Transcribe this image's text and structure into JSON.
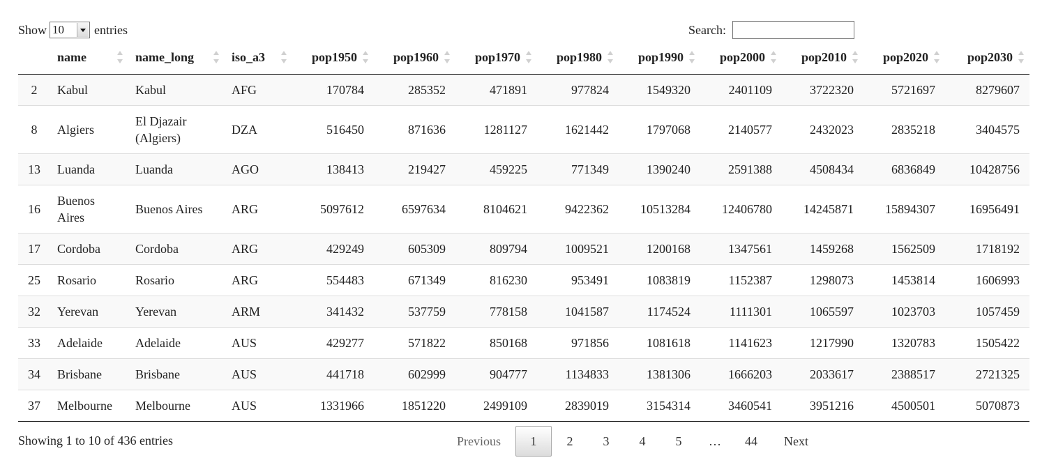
{
  "length": {
    "prefix": "Show",
    "value": "10",
    "suffix": "entries"
  },
  "search": {
    "label": "Search:",
    "value": ""
  },
  "table": {
    "columns": [
      "",
      "name",
      "name_long",
      "iso_a3",
      "pop1950",
      "pop1960",
      "pop1970",
      "pop1980",
      "pop1990",
      "pop2000",
      "pop2010",
      "pop2020",
      "pop2030"
    ],
    "rows": [
      [
        "2",
        "Kabul",
        "Kabul",
        "AFG",
        "170784",
        "285352",
        "471891",
        "977824",
        "1549320",
        "2401109",
        "3722320",
        "5721697",
        "8279607"
      ],
      [
        "8",
        "Algiers",
        "El Djazair (Algiers)",
        "DZA",
        "516450",
        "871636",
        "1281127",
        "1621442",
        "1797068",
        "2140577",
        "2432023",
        "2835218",
        "3404575"
      ],
      [
        "13",
        "Luanda",
        "Luanda",
        "AGO",
        "138413",
        "219427",
        "459225",
        "771349",
        "1390240",
        "2591388",
        "4508434",
        "6836849",
        "10428756"
      ],
      [
        "16",
        "Buenos Aires",
        "Buenos Aires",
        "ARG",
        "5097612",
        "6597634",
        "8104621",
        "9422362",
        "10513284",
        "12406780",
        "14245871",
        "15894307",
        "16956491"
      ],
      [
        "17",
        "Cordoba",
        "Cordoba",
        "ARG",
        "429249",
        "605309",
        "809794",
        "1009521",
        "1200168",
        "1347561",
        "1459268",
        "1562509",
        "1718192"
      ],
      [
        "25",
        "Rosario",
        "Rosario",
        "ARG",
        "554483",
        "671349",
        "816230",
        "953491",
        "1083819",
        "1152387",
        "1298073",
        "1453814",
        "1606993"
      ],
      [
        "32",
        "Yerevan",
        "Yerevan",
        "ARM",
        "341432",
        "537759",
        "778158",
        "1041587",
        "1174524",
        "1111301",
        "1065597",
        "1023703",
        "1057459"
      ],
      [
        "33",
        "Adelaide",
        "Adelaide",
        "AUS",
        "429277",
        "571822",
        "850168",
        "971856",
        "1081618",
        "1141623",
        "1217990",
        "1320783",
        "1505422"
      ],
      [
        "34",
        "Brisbane",
        "Brisbane",
        "AUS",
        "441718",
        "602999",
        "904777",
        "1134833",
        "1381306",
        "1666203",
        "2033617",
        "2388517",
        "2721325"
      ],
      [
        "37",
        "Melbourne",
        "Melbourne",
        "AUS",
        "1331966",
        "1851220",
        "2499109",
        "2839019",
        "3154314",
        "3460541",
        "3951216",
        "4500501",
        "5070873"
      ]
    ]
  },
  "info": "Showing 1 to 10 of 436 entries",
  "pagination": {
    "previous": "Previous",
    "pages": [
      "1",
      "2",
      "3",
      "4",
      "5"
    ],
    "ellipsis": "…",
    "last": "44",
    "next": "Next",
    "current": "1"
  },
  "icons": {
    "sort": "sort-both-icon",
    "select_arrow": "chevron-down-icon"
  },
  "colors": {
    "stripe": "#f9f9f9",
    "border": "#111111",
    "row_divider": "#dddddd",
    "sort_icon": "#d0d0d0"
  }
}
